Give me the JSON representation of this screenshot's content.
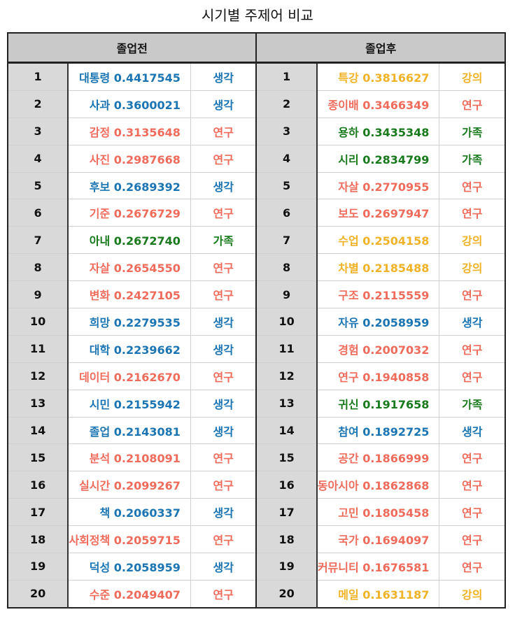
{
  "title": "시기별 주제어 비교",
  "colors": {
    "생각": "#1b75b3",
    "연구": "#ef6b5b",
    "가족": "#187a1c",
    "강의": "#f0b226"
  },
  "columns": [
    "졸업전",
    "졸업후"
  ],
  "before": [
    {
      "rank": "1",
      "word": "대통령 0.4417545",
      "cat": "생각"
    },
    {
      "rank": "2",
      "word": "사과 0.3600021",
      "cat": "생각"
    },
    {
      "rank": "3",
      "word": "감정 0.3135648",
      "cat": "연구"
    },
    {
      "rank": "4",
      "word": "사진 0.2987668",
      "cat": "연구"
    },
    {
      "rank": "5",
      "word": "후보 0.2689392",
      "cat": "생각"
    },
    {
      "rank": "6",
      "word": "기준 0.2676729",
      "cat": "연구"
    },
    {
      "rank": "7",
      "word": "아내 0.2672740",
      "cat": "가족"
    },
    {
      "rank": "8",
      "word": "자살 0.2654550",
      "cat": "연구"
    },
    {
      "rank": "9",
      "word": "변화 0.2427105",
      "cat": "연구"
    },
    {
      "rank": "10",
      "word": "희망 0.2279535",
      "cat": "생각"
    },
    {
      "rank": "11",
      "word": "대학 0.2239662",
      "cat": "생각"
    },
    {
      "rank": "12",
      "word": "데이터 0.2162670",
      "cat": "연구"
    },
    {
      "rank": "13",
      "word": "시민 0.2155942",
      "cat": "생각"
    },
    {
      "rank": "14",
      "word": "졸업 0.2143081",
      "cat": "생각"
    },
    {
      "rank": "15",
      "word": "분석 0.2108091",
      "cat": "연구"
    },
    {
      "rank": "16",
      "word": "실시간 0.2099267",
      "cat": "연구"
    },
    {
      "rank": "17",
      "word": "책 0.2060337",
      "cat": "생각"
    },
    {
      "rank": "18",
      "word": "사회정책 0.2059715",
      "cat": "연구"
    },
    {
      "rank": "19",
      "word": "덕성 0.2058959",
      "cat": "생각"
    },
    {
      "rank": "20",
      "word": "수준 0.2049407",
      "cat": "연구"
    }
  ],
  "after": [
    {
      "rank": "1",
      "word": "특강 0.3816627",
      "cat": "강의"
    },
    {
      "rank": "2",
      "word": "종이배 0.3466349",
      "cat": "연구"
    },
    {
      "rank": "3",
      "word": "용하 0.3435348",
      "cat": "가족"
    },
    {
      "rank": "4",
      "word": "시리 0.2834799",
      "cat": "가족"
    },
    {
      "rank": "5",
      "word": "자살 0.2770955",
      "cat": "연구"
    },
    {
      "rank": "6",
      "word": "보도 0.2697947",
      "cat": "연구"
    },
    {
      "rank": "7",
      "word": "수업 0.2504158",
      "cat": "강의"
    },
    {
      "rank": "8",
      "word": "차별 0.2185488",
      "cat": "강의"
    },
    {
      "rank": "9",
      "word": "구조 0.2115559",
      "cat": "연구"
    },
    {
      "rank": "10",
      "word": "자유 0.2058959",
      "cat": "생각"
    },
    {
      "rank": "11",
      "word": "경험 0.2007032",
      "cat": "연구"
    },
    {
      "rank": "12",
      "word": "연구 0.1940858",
      "cat": "연구"
    },
    {
      "rank": "13",
      "word": "귀신 0.1917658",
      "cat": "가족"
    },
    {
      "rank": "14",
      "word": "참여 0.1892725",
      "cat": "생각"
    },
    {
      "rank": "15",
      "word": "공간 0.1866999",
      "cat": "연구"
    },
    {
      "rank": "16",
      "word": "동아시아 0.1862868",
      "cat": "연구"
    },
    {
      "rank": "17",
      "word": "고민 0.1805458",
      "cat": "연구"
    },
    {
      "rank": "18",
      "word": "국가 0.1694097",
      "cat": "연구"
    },
    {
      "rank": "19",
      "word": "커뮤니티 0.1676581",
      "cat": "연구"
    },
    {
      "rank": "20",
      "word": "메일 0.1631187",
      "cat": "강의"
    }
  ]
}
